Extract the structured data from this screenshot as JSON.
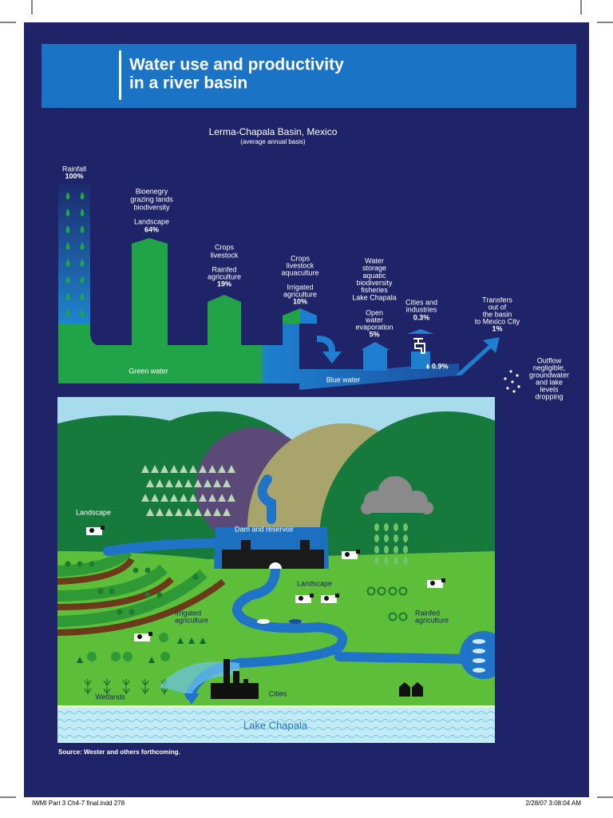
{
  "header": {
    "title_lines": [
      "Water use and productivity",
      "in a river basin"
    ]
  },
  "subtitle": "Lerma-Chapala Basin, Mexico",
  "subtitle_note": "(average annual basis)",
  "flow": {
    "rainfall": {
      "lines": [
        "Rainfall"
      ],
      "percent": "100%"
    },
    "landscape": {
      "uses": [
        "Bioenegry",
        "grazing lands",
        "biodiversity"
      ],
      "lines": [
        "Landscape"
      ],
      "percent": "64%"
    },
    "rainfed": {
      "uses": [
        "Crops",
        "livestock"
      ],
      "lines": [
        "Rainfed",
        "agriculture"
      ],
      "percent": "19%"
    },
    "irrigated": {
      "uses": [
        "Crops",
        "livestock",
        "aquaculture"
      ],
      "lines": [
        "Irrigated",
        "agriculture"
      ],
      "percent": "10%"
    },
    "open_water": {
      "uses": [
        "Water",
        "storage",
        "aquatic",
        "biodiversity",
        "fisheries",
        "Lake Chapala"
      ],
      "lines": [
        "Open",
        "water",
        "evaporation"
      ],
      "percent": "5%"
    },
    "cities": {
      "lines": [
        "Cities and",
        "industries"
      ],
      "percent": "0.3%"
    },
    "leak": {
      "percent": "0.9%"
    },
    "transfers": {
      "lines": [
        "Transfers",
        "out of",
        "the basin",
        "to Mexico City"
      ],
      "percent": "1%"
    },
    "outflow": {
      "lines": [
        "Outflow",
        "negligible,",
        "groundwater",
        "and lake",
        "levels",
        "dropping"
      ]
    },
    "green_water": "Green water",
    "blue_water": "Blue water"
  },
  "illustration": {
    "labels": {
      "landscape_left": "Landscape",
      "dam": "Dam and reservoir",
      "landscape_center": "Landscape",
      "irrigated": [
        "Irrigated",
        "agriculture"
      ],
      "rainfed": [
        "Rainfed",
        "agriculture"
      ],
      "wetlands": "Wetlands",
      "cities": "Cities",
      "lake": "Lake Chapala"
    }
  },
  "source": "Source: Wester and others forthcoming.",
  "footer": {
    "left": "IWMI Part 3 Ch4-7 final.indd   278",
    "right": "2/28/07   3:08:04 AM"
  }
}
